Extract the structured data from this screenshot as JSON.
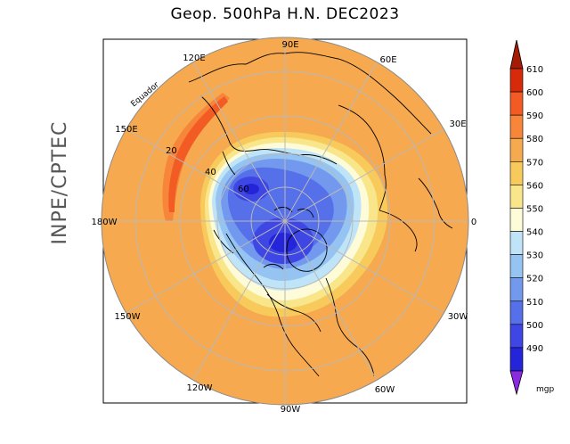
{
  "title": "Geop. 500hPa H.N. DEC2023",
  "institution": "INPE/CPTEC",
  "map": {
    "projection": "polar-stereographic-north",
    "equator_label": "Equador",
    "longitude_labels": [
      "90E",
      "60E",
      "30E",
      "0",
      "30W",
      "60W",
      "90W",
      "120W",
      "150W",
      "180W",
      "150E",
      "120E"
    ],
    "latitude_labels": [
      "20",
      "40",
      "60"
    ]
  },
  "colorbar": {
    "unit": "mgp",
    "levels": [
      "610",
      "600",
      "590",
      "580",
      "570",
      "560",
      "550",
      "540",
      "530",
      "520",
      "510",
      "500",
      "490"
    ],
    "colors": [
      "#d62a0b",
      "#f25b24",
      "#f7853a",
      "#f6aa4f",
      "#f8ca5c",
      "#f9e68b",
      "#fdfbd8",
      "#bfe4f7",
      "#95c4f3",
      "#7399ee",
      "#5670e9",
      "#3e47e3",
      "#2424d8"
    ],
    "top_triangle_color": "#a51c06",
    "bottom_triangle_color": "#8a2be2"
  },
  "colors": {
    "ocean_base": "#f6a94f",
    "band_590": "#f7853a",
    "band_600": "#f25b24",
    "grid": "#b9b9b9",
    "coast": "#000000"
  }
}
